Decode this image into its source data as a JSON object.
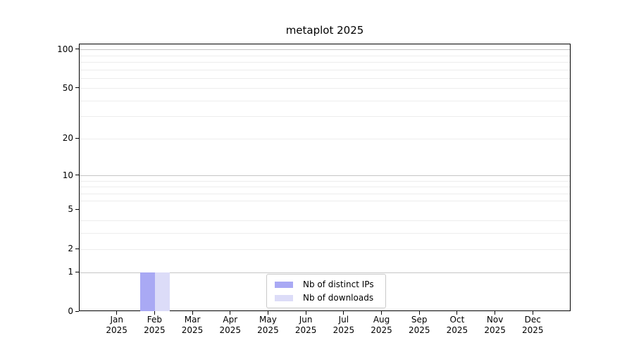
{
  "chart_data": {
    "type": "bar",
    "title": "metaplot 2025",
    "categories": [
      "Jan 2025",
      "Feb 2025",
      "Mar 2025",
      "Apr 2025",
      "May 2025",
      "Jun 2025",
      "Jul 2025",
      "Aug 2025",
      "Sep 2025",
      "Oct 2025",
      "Nov 2025",
      "Dec 2025"
    ],
    "series": [
      {
        "name": "Nb of distinct IPs",
        "color": "#a9a9f4",
        "values": [
          0,
          1,
          0,
          0,
          0,
          0,
          0,
          0,
          0,
          0,
          0,
          0
        ]
      },
      {
        "name": "Nb of downloads",
        "color": "#dcdcf8",
        "values": [
          0,
          1,
          0,
          0,
          0,
          0,
          0,
          0,
          0,
          0,
          0,
          0
        ]
      }
    ],
    "xlabel": "",
    "ylabel": "",
    "y_axis": {
      "scale": "log1p",
      "ylim": [
        0,
        110
      ],
      "tick_values": [
        0,
        1,
        2,
        5,
        10,
        20,
        50,
        100
      ],
      "major_grid_values": [
        1,
        10,
        100
      ],
      "minor_grid_values": [
        2,
        3,
        4,
        6,
        7,
        8,
        9,
        20,
        30,
        40,
        50,
        60,
        70,
        80,
        90
      ],
      "major_grid_color": "#c6c6c6",
      "minor_grid_color": "#ededed"
    },
    "legend": {
      "position": "lower center",
      "border_color": "#c9c9c9"
    }
  }
}
